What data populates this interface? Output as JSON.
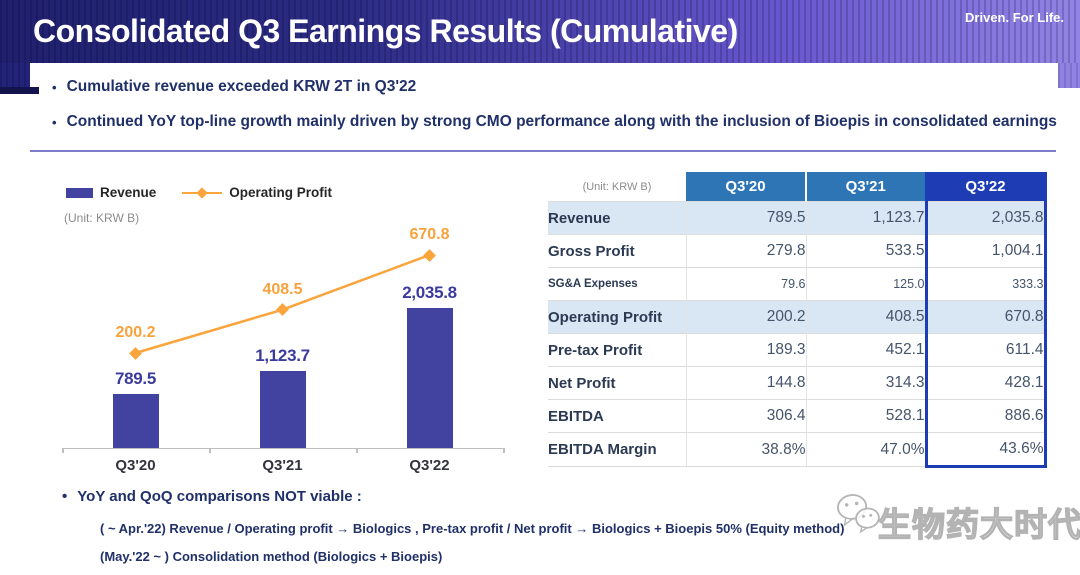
{
  "header": {
    "title": "Consolidated Q3 Earnings Results (Cumulative)",
    "tagline": "Driven. For Life."
  },
  "bullets": [
    "Cumulative revenue exceeded KRW 2T in Q3'22",
    "Continued YoY top-line growth mainly driven by strong CMO performance along with the inclusion of Bioepis in consolidated earnings"
  ],
  "chart_data": {
    "type": "combo",
    "categories": [
      "Q3'20",
      "Q3'21",
      "Q3'22"
    ],
    "series": [
      {
        "name": "Revenue",
        "type": "bar",
        "values": [
          789.5,
          1123.7,
          2035.8
        ],
        "labels": [
          "789.5",
          "1,123.7",
          "2,035.8"
        ],
        "color": "#4242A0"
      },
      {
        "name": "Operating Profit",
        "type": "line",
        "values": [
          200.2,
          408.5,
          670.8
        ],
        "labels": [
          "200.2",
          "408.5",
          "670.8"
        ],
        "color": "#FAA43C"
      }
    ],
    "title": "",
    "xlabel": "",
    "ylabel": "",
    "unit": "KRW B",
    "unit_label": "(Unit: KRW B)",
    "legend_position": "top-left",
    "grid": false
  },
  "table": {
    "unit_label": "(Unit: KRW B)",
    "columns": [
      "Q3'20",
      "Q3'21",
      "Q3'22"
    ],
    "rows": [
      {
        "label": "Revenue",
        "values": [
          "789.5",
          "1,123.7",
          "2,035.8"
        ]
      },
      {
        "label": "Gross Profit",
        "values": [
          "279.8",
          "533.5",
          "1,004.1"
        ]
      },
      {
        "label": "SG&A Expenses",
        "values": [
          "79.6",
          "125.0",
          "333.3"
        ]
      },
      {
        "label": "Operating Profit",
        "values": [
          "200.2",
          "408.5",
          "670.8"
        ]
      },
      {
        "label": "Pre-tax Profit",
        "values": [
          "189.3",
          "452.1",
          "611.4"
        ]
      },
      {
        "label": "Net Profit",
        "values": [
          "144.8",
          "314.3",
          "428.1"
        ]
      },
      {
        "label": "EBITDA",
        "values": [
          "306.4",
          "528.1",
          "886.6"
        ]
      },
      {
        "label": "EBITDA Margin",
        "values": [
          "38.8%",
          "47.0%",
          "43.6%"
        ]
      }
    ]
  },
  "notes": {
    "title": "YoY and QoQ comparisons NOT viable :",
    "lines": [
      "( ~ Apr.'22)  Revenue / Operating profit →  Biologics ,  Pre-tax profit / Net profit  →  Biologics + Bioepis 50% (Equity method)",
      "(May.'22 ~ )  Consolidation method (Biologics + Bioepis)"
    ]
  },
  "watermark": {
    "text": "生物药大时代",
    "logo": "wechat-icon"
  },
  "colors": {
    "header_gradient_start": "#20206E",
    "header_gradient_end": "#9184E4",
    "bar": "#4242A0",
    "bar_label": "#3B3B9E",
    "line": "#FAA43C",
    "line_label": "#F9A23C",
    "table_header_blue": "#2E75B6",
    "table_highlight_blue": "#1E3CB4",
    "row_shade": "#D9E6F4",
    "text_navy": "#203069",
    "value_slate": "#44546A"
  }
}
